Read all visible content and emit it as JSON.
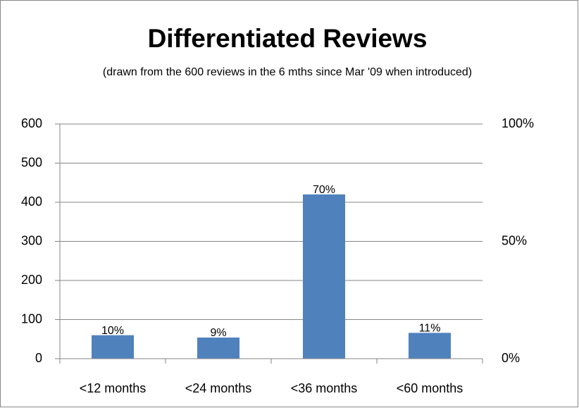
{
  "chart_data": {
    "type": "bar",
    "title": "Differentiated Reviews",
    "subtitle": "(drawn from the 600 reviews in the 6 mths since Mar '09 when introduced)",
    "categories": [
      "<12 months",
      "<24 months",
      "<36 months",
      "<60 months"
    ],
    "values": [
      60,
      54,
      420,
      66
    ],
    "value_labels": [
      "10%",
      "9%",
      "70%",
      "11%"
    ],
    "color": "#4f81bd",
    "ylim": [
      0,
      600
    ],
    "yticks": [
      0,
      100,
      200,
      300,
      400,
      500,
      600
    ],
    "y2lim": [
      0,
      100
    ],
    "y2ticks": [
      {
        "value": 0,
        "label": "0%"
      },
      {
        "value": 50,
        "label": "50%"
      },
      {
        "value": 100,
        "label": "100%"
      }
    ],
    "grid": true
  }
}
